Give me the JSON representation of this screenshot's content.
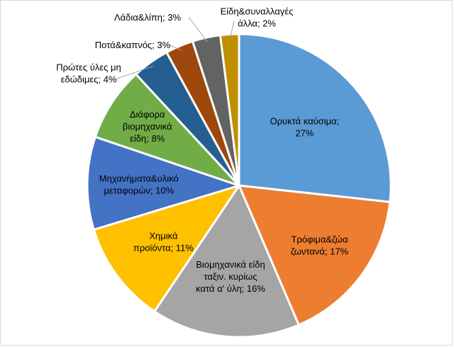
{
  "chart_data": {
    "type": "pie",
    "title": "",
    "start_angle_deg": 0,
    "direction": "clockwise",
    "slices": [
      {
        "lines": [
          "Ορυκτά καύσιμα;",
          "27%"
        ],
        "value": 27,
        "color": "#5b9bd5"
      },
      {
        "lines": [
          "Τρόφιμα&ζώα",
          "ζωντανά; 17%"
        ],
        "value": 17,
        "color": "#ed7d31"
      },
      {
        "lines": [
          "Βιομηχανικά είδη",
          "ταξιν. κυρίως",
          "κατά α' ύλη; 16%"
        ],
        "value": 16,
        "color": "#a5a5a5"
      },
      {
        "lines": [
          "Χημικά",
          "προϊόντα; 11%"
        ],
        "value": 11,
        "color": "#ffc000"
      },
      {
        "lines": [
          "Μηχανήματα&υλικό",
          "μεταφορών; 10%"
        ],
        "value": 10,
        "color": "#4472c4"
      },
      {
        "lines": [
          "Διάφορα",
          "βιομηχανικά",
          "είδη; 8%"
        ],
        "value": 8,
        "color": "#70ad47"
      },
      {
        "lines": [
          "Πρώτες ύλες μη",
          "εδώδιμες; 4%"
        ],
        "value": 4,
        "color": "#255e91"
      },
      {
        "lines": [
          "Ποτά&καπνός; 3%"
        ],
        "value": 3,
        "color": "#9e480e"
      },
      {
        "lines": [
          "Λάδια&λίπη; 3%"
        ],
        "value": 3,
        "color": "#636363"
      },
      {
        "lines": [
          "Είδη&συναλλαγές",
          "άλλα; 2%"
        ],
        "value": 2,
        "color": "#bf8f00"
      }
    ]
  }
}
